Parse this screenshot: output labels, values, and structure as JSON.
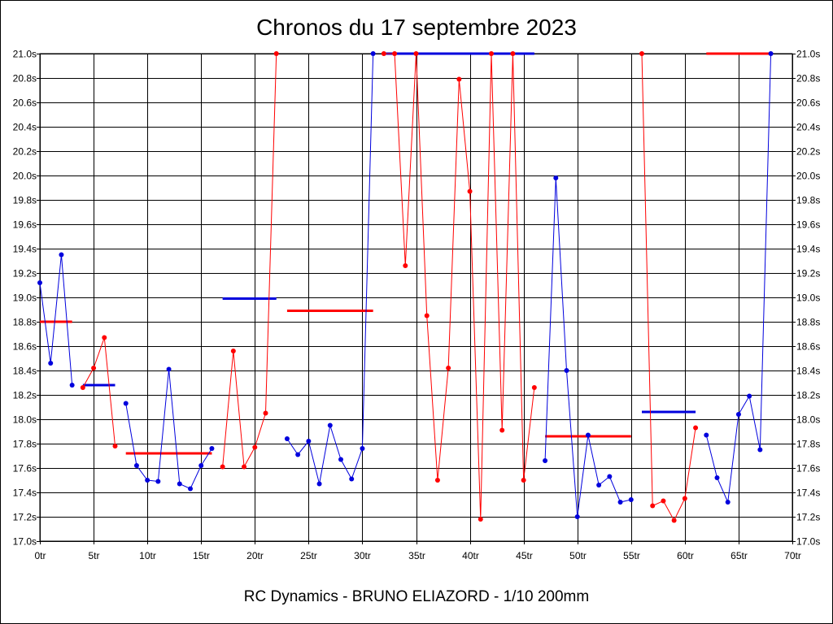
{
  "colors": {
    "red": "#ff0000",
    "blue": "#0000dd",
    "grid": "#000000"
  },
  "chart_data": {
    "type": "line",
    "title": "Chronos du 17 septembre 2023",
    "subtitle": "RC Dynamics - BRUNO ELIAZORD - 1/10 200mm",
    "xlim": [
      0,
      70
    ],
    "ylim": [
      17.0,
      21.0
    ],
    "x_ticks": [
      0,
      5,
      10,
      15,
      20,
      25,
      30,
      35,
      40,
      45,
      50,
      55,
      60,
      65,
      70
    ],
    "x_tick_labels": [
      "0tr",
      "5tr",
      "10tr",
      "15tr",
      "20tr",
      "25tr",
      "30tr",
      "35tr",
      "40tr",
      "45tr",
      "50tr",
      "55tr",
      "60tr",
      "65tr",
      "70tr"
    ],
    "y_ticks": [
      17.0,
      17.2,
      17.4,
      17.6,
      17.8,
      18.0,
      18.2,
      18.4,
      18.6,
      18.8,
      19.0,
      19.2,
      19.4,
      19.6,
      19.8,
      20.0,
      20.2,
      20.4,
      20.6,
      20.8,
      21.0
    ],
    "y_tick_labels": [
      "17.0s",
      "17.2s",
      "17.4s",
      "17.6s",
      "17.8s",
      "18.0s",
      "18.2s",
      "18.4s",
      "18.6s",
      "18.8s",
      "19.0s",
      "19.2s",
      "19.4s",
      "19.6s",
      "19.8s",
      "20.0s",
      "20.2s",
      "20.4s",
      "20.6s",
      "20.8s",
      "21.0s"
    ],
    "grid": true,
    "series": [
      {
        "color": "blue",
        "points": [
          [
            0,
            19.12
          ],
          [
            1,
            18.46
          ],
          [
            2,
            19.35
          ],
          [
            3,
            18.28
          ]
        ]
      },
      {
        "color": "red",
        "points": [
          [
            4,
            18.26
          ],
          [
            5,
            18.42
          ],
          [
            6,
            18.67
          ],
          [
            7,
            17.78
          ]
        ]
      },
      {
        "color": "blue",
        "points": [
          [
            8,
            18.13
          ],
          [
            9,
            17.62
          ],
          [
            10,
            17.5
          ],
          [
            11,
            17.49
          ],
          [
            12,
            18.41
          ],
          [
            13,
            17.47
          ],
          [
            14,
            17.43
          ],
          [
            15,
            17.62
          ],
          [
            16,
            17.76
          ]
        ]
      },
      {
        "color": "red",
        "points": [
          [
            17,
            17.61
          ],
          [
            18,
            18.56
          ],
          [
            19,
            17.61
          ],
          [
            20,
            17.77
          ],
          [
            21,
            18.05
          ],
          [
            22,
            21.0
          ]
        ]
      },
      {
        "color": "blue",
        "points": [
          [
            23,
            17.84
          ],
          [
            24,
            17.71
          ],
          [
            25,
            17.82
          ],
          [
            26,
            17.47
          ],
          [
            27,
            17.95
          ],
          [
            28,
            17.67
          ],
          [
            29,
            17.51
          ],
          [
            30,
            17.76
          ],
          [
            31,
            21.0
          ]
        ]
      },
      {
        "color": "red",
        "points": [
          [
            32,
            21.0
          ],
          [
            33,
            21.0
          ],
          [
            34,
            19.26
          ],
          [
            35,
            21.0
          ],
          [
            36,
            18.85
          ],
          [
            37,
            17.5
          ],
          [
            38,
            18.42
          ],
          [
            39,
            20.79
          ],
          [
            40,
            19.87
          ],
          [
            41,
            17.18
          ],
          [
            42,
            21.0
          ],
          [
            43,
            17.91
          ],
          [
            44,
            21.0
          ],
          [
            45,
            17.5
          ],
          [
            46,
            18.26
          ]
        ]
      },
      {
        "color": "blue",
        "points": [
          [
            47,
            17.66
          ],
          [
            48,
            19.98
          ],
          [
            49,
            18.4
          ],
          [
            50,
            17.2
          ],
          [
            51,
            17.87
          ],
          [
            52,
            17.46
          ],
          [
            53,
            17.53
          ],
          [
            54,
            17.32
          ],
          [
            55,
            17.34
          ]
        ]
      },
      {
        "color": "red",
        "points": [
          [
            56,
            21.0
          ],
          [
            57,
            17.29
          ],
          [
            58,
            17.33
          ],
          [
            59,
            17.17
          ],
          [
            60,
            17.35
          ],
          [
            61,
            17.93
          ]
        ]
      },
      {
        "color": "blue",
        "points": [
          [
            62,
            17.87
          ],
          [
            63,
            17.52
          ],
          [
            64,
            17.32
          ],
          [
            65,
            18.04
          ],
          [
            66,
            18.19
          ],
          [
            67,
            17.75
          ],
          [
            68,
            21.0
          ]
        ]
      }
    ],
    "averages": [
      {
        "color": "red",
        "x_start": 0,
        "x_end": 3,
        "y": 18.8
      },
      {
        "color": "blue",
        "x_start": 4,
        "x_end": 7,
        "y": 18.28
      },
      {
        "color": "red",
        "x_start": 8,
        "x_end": 16,
        "y": 17.72
      },
      {
        "color": "blue",
        "x_start": 17,
        "x_end": 22,
        "y": 18.99
      },
      {
        "color": "red",
        "x_start": 23,
        "x_end": 31,
        "y": 18.89
      },
      {
        "color": "blue",
        "x_start": 32,
        "x_end": 46,
        "y": 21.0
      },
      {
        "color": "red",
        "x_start": 47,
        "x_end": 55,
        "y": 17.86
      },
      {
        "color": "blue",
        "x_start": 56,
        "x_end": 61,
        "y": 18.06
      },
      {
        "color": "red",
        "x_start": 62,
        "x_end": 68,
        "y": 21.0
      }
    ]
  }
}
